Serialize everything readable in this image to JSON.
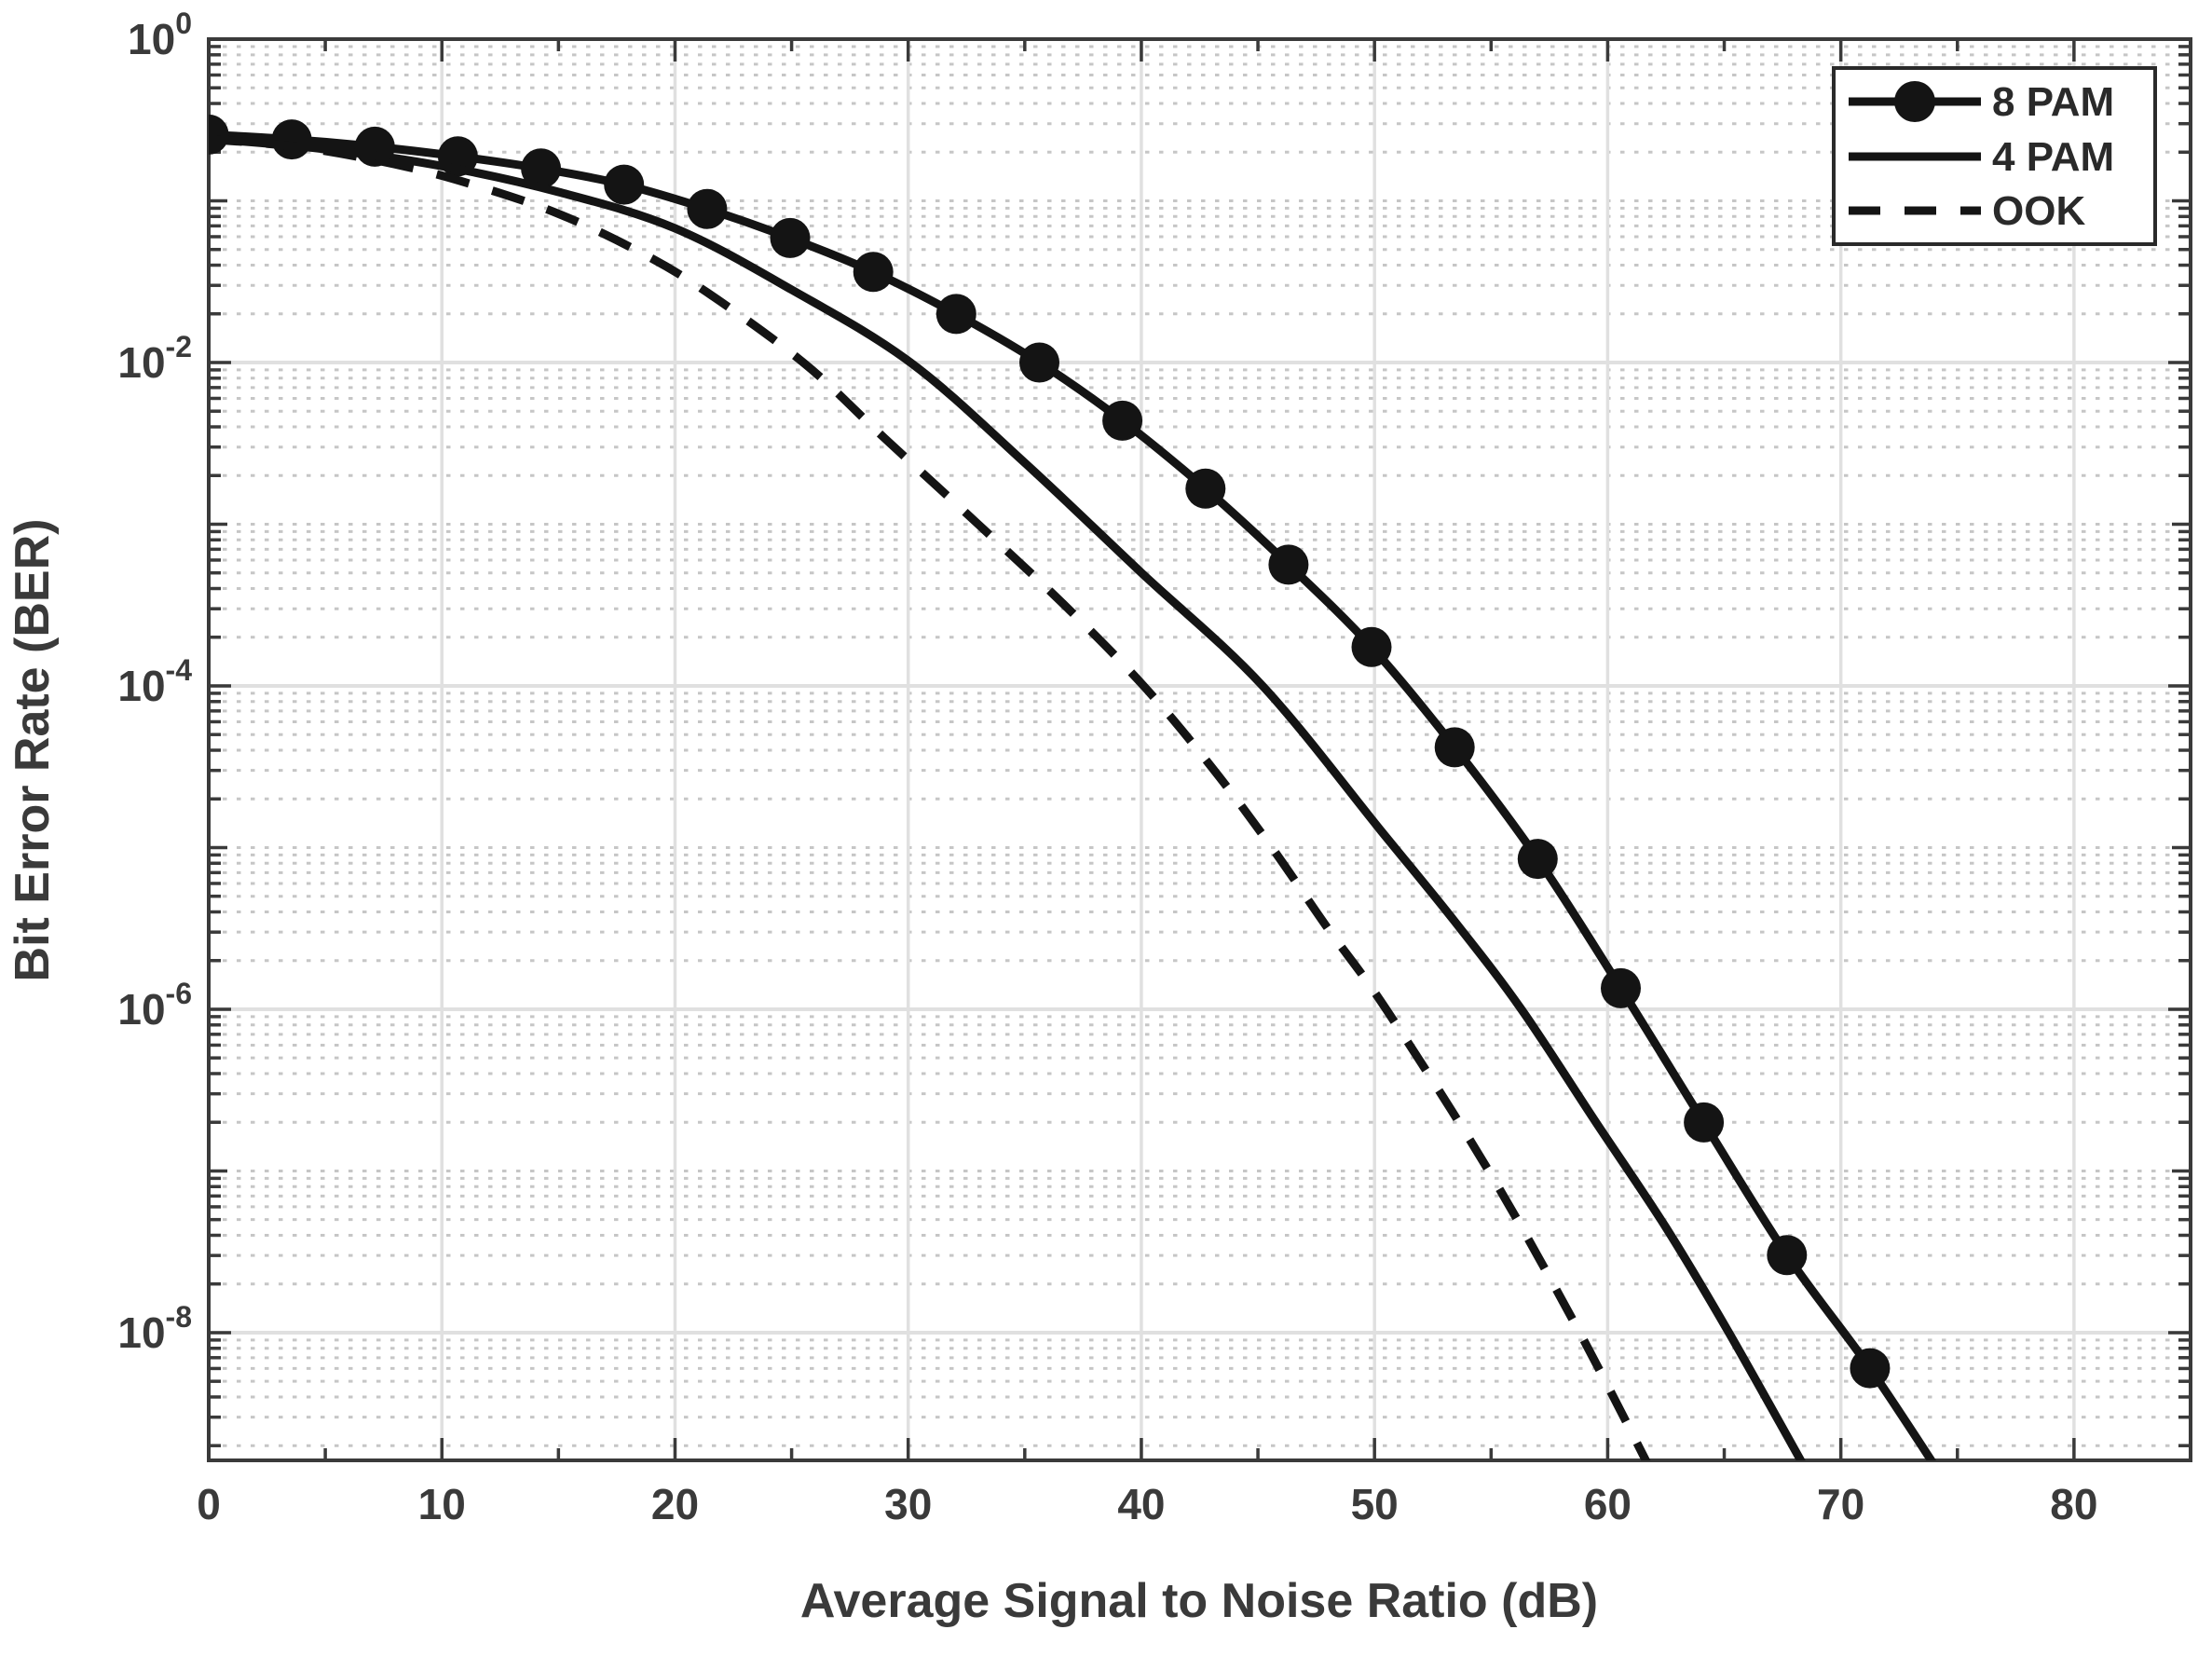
{
  "chart_data": {
    "type": "line",
    "title": "",
    "xlabel": "Average Signal to Noise Ratio (dB)",
    "ylabel": "Bit Error Rate (BER)",
    "xlim": [
      0,
      85
    ],
    "y_exponent_top": 0,
    "y_exponent_min": -8.79,
    "x_ticks": [
      {
        "value": 0,
        "label": "0"
      },
      {
        "value": 10,
        "label": "10"
      },
      {
        "value": 20,
        "label": "20"
      },
      {
        "value": 30,
        "label": "30"
      },
      {
        "value": 40,
        "label": "40"
      },
      {
        "value": 50,
        "label": "50"
      },
      {
        "value": 60,
        "label": "60"
      },
      {
        "value": 70,
        "label": "70"
      },
      {
        "value": 80,
        "label": "80"
      }
    ],
    "x_minor_tick_step": 5,
    "y_ticks": [
      {
        "exponent": 0,
        "base": "10",
        "sup": "0"
      },
      {
        "exponent": -2,
        "base": "10",
        "sup": "-2"
      },
      {
        "exponent": -4,
        "base": "10",
        "sup": "-4"
      },
      {
        "exponent": -6,
        "base": "10",
        "sup": "-6"
      },
      {
        "exponent": -8,
        "base": "10",
        "sup": "-8"
      }
    ],
    "grid": {
      "major": true,
      "minor_dotted": true,
      "legend_position": "northeast"
    },
    "legend": {
      "entries": [
        "8 PAM",
        "4 PAM",
        "OOK"
      ]
    },
    "series": [
      {
        "name": "8 PAM",
        "line_style": "solid",
        "marker": "filled-circle",
        "marker_spacing_db": 3.5625,
        "marker_count": 21,
        "points_db_log10ber": [
          [
            0,
            -0.59
          ],
          [
            3.5625,
            -0.62
          ],
          [
            7.125,
            -0.665
          ],
          [
            10.6875,
            -0.725
          ],
          [
            14.25,
            -0.8
          ],
          [
            17.8125,
            -0.9
          ],
          [
            21.375,
            -1.05
          ],
          [
            24.9375,
            -1.23
          ],
          [
            28.5,
            -1.44
          ],
          [
            32.0625,
            -1.7
          ],
          [
            35.625,
            -2.0
          ],
          [
            39.1875,
            -2.36
          ],
          [
            42.75,
            -2.78
          ],
          [
            46.3125,
            -3.25
          ],
          [
            49.875,
            -3.76
          ],
          [
            53.4375,
            -4.38
          ],
          [
            57.0,
            -5.07
          ],
          [
            60.5625,
            -5.87
          ],
          [
            64.125,
            -6.7
          ],
          [
            67.6875,
            -7.52
          ],
          [
            71.25,
            -8.22
          ],
          [
            74.6,
            -8.95
          ]
        ]
      },
      {
        "name": "4 PAM",
        "line_style": "solid",
        "marker": "none",
        "points_db_log10ber": [
          [
            0,
            -0.615
          ],
          [
            5,
            -0.68
          ],
          [
            10,
            -0.785
          ],
          [
            15,
            -0.945
          ],
          [
            20,
            -1.17
          ],
          [
            25,
            -1.55
          ],
          [
            30.1,
            -2.0
          ],
          [
            35,
            -2.62
          ],
          [
            40,
            -3.3
          ],
          [
            45.2,
            -4.0
          ],
          [
            50.3,
            -4.9
          ],
          [
            53.4,
            -5.45
          ],
          [
            56.3,
            -6.0
          ],
          [
            59.5,
            -6.7
          ],
          [
            62.5,
            -7.35
          ],
          [
            65.2,
            -8.0
          ],
          [
            68.9,
            -8.95
          ]
        ]
      },
      {
        "name": "OOK",
        "line_style": "dashed",
        "marker": "none",
        "points_db_log10ber": [
          [
            0,
            -0.62
          ],
          [
            4,
            -0.67
          ],
          [
            8.5,
            -0.79
          ],
          [
            12,
            -0.93
          ],
          [
            15,
            -1.08
          ],
          [
            18,
            -1.28
          ],
          [
            21,
            -1.53
          ],
          [
            25.5,
            -2.0
          ],
          [
            29,
            -2.47
          ],
          [
            33,
            -3.0
          ],
          [
            36.7,
            -3.5
          ],
          [
            40.1,
            -4.0
          ],
          [
            43,
            -4.5
          ],
          [
            45.6,
            -5.0
          ],
          [
            48,
            -5.5
          ],
          [
            50.5,
            -6.0
          ],
          [
            54.9,
            -7.0
          ],
          [
            58.8,
            -8.0
          ],
          [
            62.2,
            -8.95
          ]
        ]
      }
    ],
    "colors": {
      "line": "#141414",
      "axis": "#3a3a3a",
      "text": "#3a3a3a",
      "grid_major": "#e0e0e0",
      "grid_minor": "#c6c6c6",
      "background": "#ffffff",
      "legend_border": "#2a2a2a"
    }
  }
}
